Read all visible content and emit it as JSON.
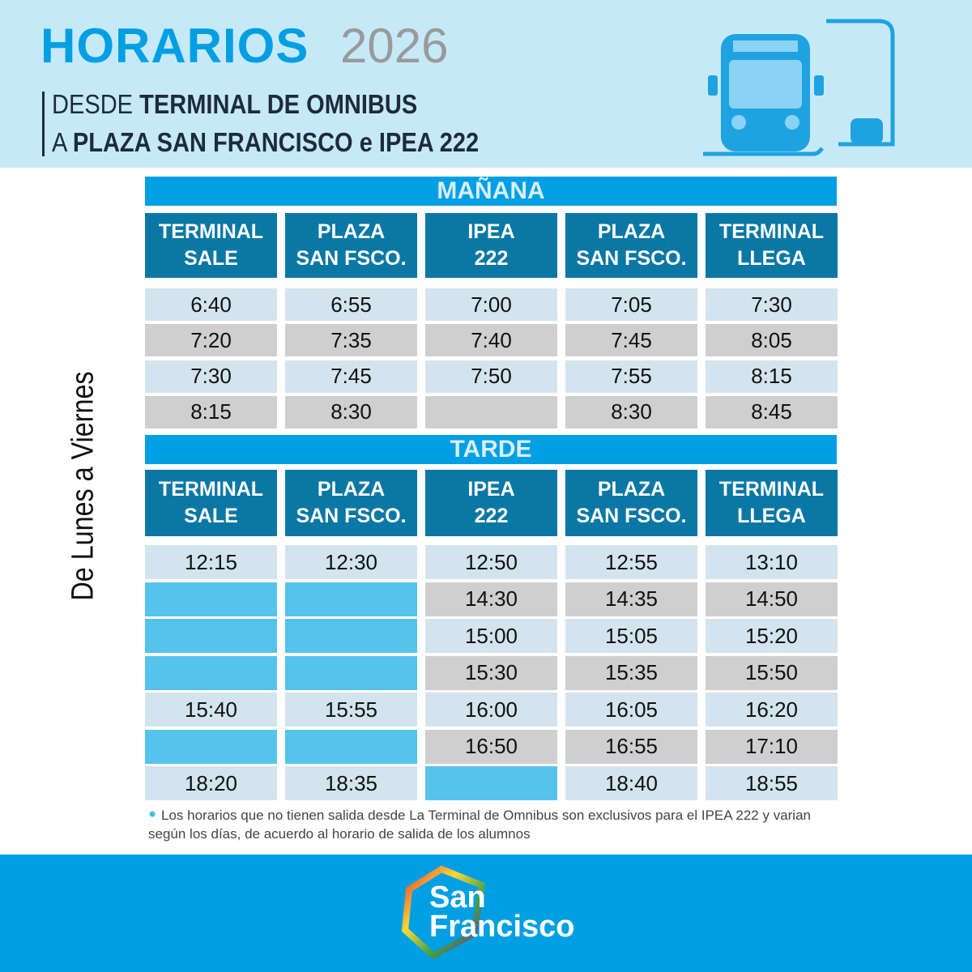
{
  "header": {
    "title": "HORARIOS",
    "year": "2026",
    "subtitle": [
      {
        "prefix": "DESDE",
        "emphasis": "TERMINAL DE OMNIBUS"
      },
      {
        "prefix": "A",
        "emphasis": "PLAZA SAN FRANCISCO e IPEA 222"
      }
    ]
  },
  "side_label": "De Lunes a Viernes",
  "sections": [
    {
      "title": "MAÑANA",
      "headers": [
        [
          "TERMINAL",
          "SALE"
        ],
        [
          "PLAZA",
          "SAN FSCO."
        ],
        [
          "IPEA",
          "222"
        ],
        [
          "PLAZA",
          "SAN FSCO."
        ],
        [
          "TERMINAL",
          "LLEGA"
        ]
      ],
      "rows": [
        [
          "6:40",
          "6:55",
          "7:00",
          "7:05",
          "7:30"
        ],
        [
          "7:20",
          "7:35",
          "7:40",
          "7:45",
          "8:05"
        ],
        [
          "7:30",
          "7:45",
          "7:50",
          "7:55",
          "8:15"
        ],
        [
          "8:15",
          "8:30",
          null,
          "8:30",
          "8:45"
        ]
      ]
    },
    {
      "title": "TARDE",
      "empty_cell_color": "#55c3ec",
      "headers": [
        [
          "TERMINAL",
          "SALE"
        ],
        [
          "PLAZA",
          "SAN FSCO."
        ],
        [
          "IPEA",
          "222"
        ],
        [
          "PLAZA",
          "SAN FSCO."
        ],
        [
          "TERMINAL",
          "LLEGA"
        ]
      ],
      "rows": [
        [
          "12:15",
          "12:30",
          "12:50",
          "12:55",
          "13:10"
        ],
        [
          null,
          null,
          "14:30",
          "14:35",
          "14:50"
        ],
        [
          null,
          null,
          "15:00",
          "15:05",
          "15:20"
        ],
        [
          null,
          null,
          "15:30",
          "15:35",
          "15:50"
        ],
        [
          "15:40",
          "15:55",
          "16:00",
          "16:05",
          "16:20"
        ],
        [
          null,
          null,
          "16:50",
          "16:55",
          "17:10"
        ],
        [
          "18:20",
          "18:35",
          null,
          "18:40",
          "18:55"
        ]
      ]
    }
  ],
  "note": "Los horarios que no tienen salida desde La Terminal de Omnibus son exclusivos para el  IPEA 222 y varian según los días,  de acuerdo al horario de salida  de los alumnos",
  "logo": {
    "line1": "San",
    "line2": "Francisco"
  }
}
